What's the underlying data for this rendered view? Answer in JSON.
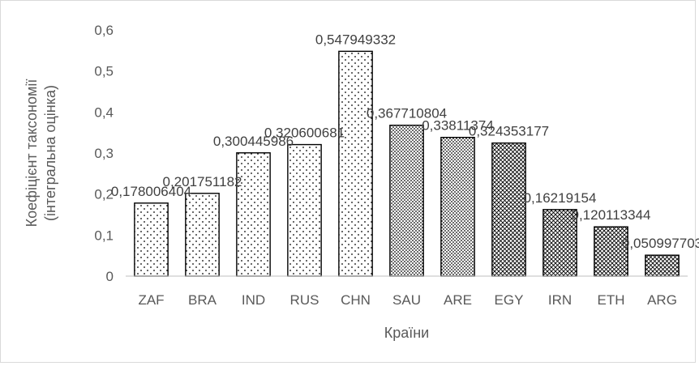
{
  "chart_data": {
    "type": "bar",
    "title": "",
    "xlabel": "Країни",
    "ylabel_lines": [
      "Коефіцієнт таксономії",
      "(інтегральна оцінка)"
    ],
    "categories": [
      "ZAF",
      "BRA",
      "IND",
      "RUS",
      "CHN",
      "SAU",
      "ARE",
      "EGY",
      "IRN",
      "ETH",
      "ARG"
    ],
    "values": [
      0.178006404,
      0.201751182,
      0.300445986,
      0.320600681,
      0.547949332,
      0.367710804,
      0.33811374,
      0.324353177,
      0.16219154,
      0.120113344,
      0.050997703
    ],
    "data_labels": [
      "0,178006404",
      "0,201751182",
      "0,300445986",
      "0,320600681",
      "0,547949332",
      "0,367710804",
      "0,33811374",
      "0,324353177",
      "0,16219154",
      "0,120113344",
      "0,050997703"
    ],
    "patterns": [
      "sparse-dots",
      "sparse-dots",
      "sparse-dots",
      "sparse-dots",
      "sparse-dots",
      "dense-dots",
      "dense-dots",
      "crosshatch",
      "crosshatch",
      "crosshatch",
      "crosshatch"
    ],
    "ylim": [
      0,
      0.6
    ],
    "yticks": [
      0,
      0.1,
      0.2,
      0.3,
      0.4,
      0.5,
      0.6
    ],
    "ytick_labels": [
      "0",
      "0,1",
      "0,2",
      "0,3",
      "0,4",
      "0,5",
      "0,6"
    ],
    "grid": false,
    "legend": "none",
    "colors": {
      "bar_stroke": "#000000",
      "pattern": "#000000",
      "axis": "#bfbfbf",
      "text": "#595959"
    }
  }
}
